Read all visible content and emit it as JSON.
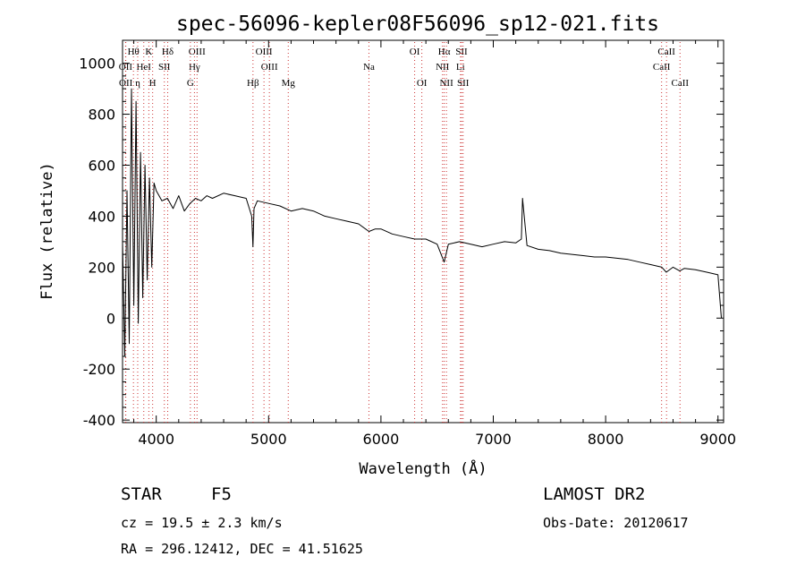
{
  "chart_data": {
    "type": "line",
    "title": "spec-56096-kepler08F56096_sp12-021.fits",
    "xlabel": "Wavelength (Å)",
    "ylabel": "Flux (relative)",
    "xlim": [
      3700,
      9050
    ],
    "ylim": [
      -410,
      1090
    ],
    "x_ticks": [
      4000,
      5000,
      6000,
      7000,
      8000,
      9000
    ],
    "y_ticks": [
      -400,
      -200,
      0,
      200,
      400,
      600,
      800,
      1000
    ],
    "grid": false,
    "series": [
      {
        "values_x": [
          3700,
          3720,
          3740,
          3760,
          3780,
          3800,
          3820,
          3840,
          3860,
          3880,
          3900,
          3920,
          3940,
          3960,
          3980,
          4000,
          4050,
          4100,
          4150,
          4200,
          4250,
          4300,
          4350,
          4400,
          4450,
          4500,
          4600,
          4700,
          4800,
          4850,
          4861,
          4870,
          4900,
          5000,
          5100,
          5200,
          5300,
          5400,
          5500,
          5600,
          5700,
          5800,
          5893,
          5950,
          6000,
          6100,
          6200,
          6300,
          6400,
          6500,
          6563,
          6600,
          6700,
          6800,
          6900,
          7000,
          7100,
          7200,
          7250,
          7260,
          7300,
          7400,
          7500,
          7600,
          7700,
          7800,
          7900,
          8000,
          8100,
          8200,
          8300,
          8400,
          8500,
          8540,
          8600,
          8660,
          8700,
          8800,
          8900,
          9000,
          9030
        ],
        "values_y": [
          300,
          -150,
          500,
          -100,
          900,
          50,
          850,
          -20,
          650,
          80,
          600,
          150,
          550,
          200,
          530,
          500,
          460,
          470,
          430,
          480,
          420,
          450,
          470,
          460,
          480,
          470,
          490,
          480,
          470,
          400,
          280,
          430,
          460,
          450,
          440,
          420,
          430,
          420,
          400,
          390,
          380,
          370,
          340,
          350,
          350,
          330,
          320,
          310,
          310,
          290,
          220,
          290,
          300,
          290,
          280,
          290,
          300,
          295,
          310,
          470,
          285,
          270,
          265,
          255,
          250,
          245,
          240,
          240,
          235,
          230,
          220,
          210,
          200,
          180,
          200,
          185,
          195,
          190,
          180,
          170,
          0
        ]
      }
    ],
    "line_markers": [
      {
        "label": "Hθ",
        "x": 3797,
        "row": 0
      },
      {
        "label": "K",
        "x": 3934,
        "row": 0
      },
      {
        "label": "Hδ",
        "x": 4102,
        "row": 0
      },
      {
        "label": "OIII",
        "x": 4363,
        "row": 0
      },
      {
        "label": "OIII",
        "x": 4959,
        "row": 0
      },
      {
        "label": "OI",
        "x": 6300,
        "row": 0
      },
      {
        "label": "Hα",
        "x": 6563,
        "row": 0
      },
      {
        "label": "SII",
        "x": 6717,
        "row": 0
      },
      {
        "label": "CaII",
        "x": 8542,
        "row": 0
      },
      {
        "label": "OII",
        "x": 3727,
        "row": 1
      },
      {
        "label": "HeI",
        "x": 3889,
        "row": 1
      },
      {
        "label": "SII",
        "x": 4072,
        "row": 1
      },
      {
        "label": "Hγ",
        "x": 4340,
        "row": 1
      },
      {
        "label": "OIII",
        "x": 5007,
        "row": 1
      },
      {
        "label": "Na",
        "x": 5893,
        "row": 1
      },
      {
        "label": "NII",
        "x": 6548,
        "row": 1
      },
      {
        "label": "Li",
        "x": 6708,
        "row": 1
      },
      {
        "label": "CaII",
        "x": 8498,
        "row": 1
      },
      {
        "label": "OII",
        "x": 3729,
        "row": 2
      },
      {
        "label": "η",
        "x": 3835,
        "row": 2
      },
      {
        "label": "H",
        "x": 3968,
        "row": 2
      },
      {
        "label": "G",
        "x": 4304,
        "row": 2
      },
      {
        "label": "Hβ",
        "x": 4861,
        "row": 2
      },
      {
        "label": "Mg",
        "x": 5175,
        "row": 2
      },
      {
        "label": "OI",
        "x": 6364,
        "row": 2
      },
      {
        "label": "NII",
        "x": 6583,
        "row": 2
      },
      {
        "label": "SII",
        "x": 6731,
        "row": 2
      },
      {
        "label": "CaII",
        "x": 8662,
        "row": 2
      }
    ]
  },
  "footer": {
    "object_class": "STAR",
    "subclass": "F5",
    "redshift": "cz = 19.5 ± 2.3 km/s",
    "coords": "RA = 296.12412, DEC =  41.51625",
    "survey": "LAMOST DR2",
    "obs_date": "Obs-Date: 20120617"
  }
}
